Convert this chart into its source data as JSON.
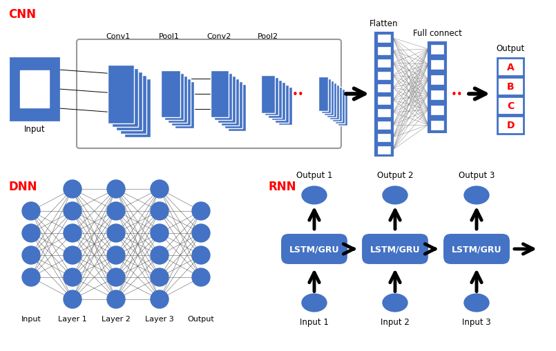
{
  "bg_color": "#ffffff",
  "blue": "#4472C4",
  "red": "#FF0000",
  "black": "#000000",
  "gray": "#888888",
  "cnn_label": "CNN",
  "dnn_label": "DNN",
  "rnn_label": "RNN",
  "flatten_label": "Flatten",
  "full_connect_label": "Full connect",
  "output_label": "Output",
  "input_label": "Input",
  "lstm_label": "LSTM/GRU",
  "output_abcd": [
    "A",
    "B",
    "C",
    "D"
  ],
  "conv_labels": [
    "Conv1",
    "Pool1",
    "Conv2",
    "Pool2"
  ],
  "dnn_layer_labels": [
    "Input",
    "Layer 1",
    "Layer 2",
    "Layer 3",
    "Output"
  ],
  "rnn_output_labels": [
    "Output 1",
    "Output 2",
    "Output 3"
  ],
  "rnn_input_labels": [
    "Input 1",
    "Input 2",
    "Input 3"
  ]
}
